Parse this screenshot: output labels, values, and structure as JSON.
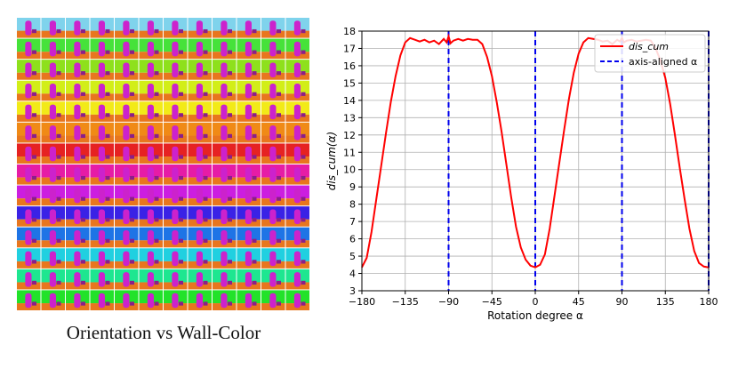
{
  "left_panel": {
    "caption": "Orientation vs Wall-Color",
    "rows": 14,
    "cols": 12,
    "row_wall_colors": [
      "#7fd3ec",
      "#46e23a",
      "#8ee01c",
      "#d2ee18",
      "#f2ea18",
      "#f08a16",
      "#e62222",
      "#e61ca6",
      "#cc1ee0",
      "#3a22e6",
      "#1e74e6",
      "#20d0e0",
      "#1ee690",
      "#22e22a"
    ],
    "object_color": "#cc22cc",
    "floor_color": "#e8761e"
  },
  "chart_data": {
    "type": "line",
    "title": "",
    "xlabel": "Rotation degree α",
    "ylabel": "dis_cum(α)",
    "xlim": [
      -180,
      180
    ],
    "ylim": [
      3,
      18
    ],
    "xticks": [
      -180,
      -135,
      -90,
      -45,
      0,
      45,
      90,
      135,
      180
    ],
    "yticks": [
      3,
      4,
      5,
      6,
      7,
      8,
      9,
      10,
      11,
      12,
      13,
      14,
      15,
      16,
      17,
      18
    ],
    "grid": true,
    "legend_position": "top-right",
    "legend": [
      "dis_cum",
      "axis-aligned α"
    ],
    "series": [
      {
        "name": "dis_cum",
        "color": "#ff0000",
        "x": [
          -180,
          -175,
          -170,
          -165,
          -160,
          -155,
          -150,
          -145,
          -140,
          -135,
          -130,
          -125,
          -120,
          -115,
          -110,
          -105,
          -100,
          -95,
          -92,
          -90,
          -88,
          -85,
          -80,
          -75,
          -70,
          -65,
          -60,
          -55,
          -50,
          -45,
          -40,
          -35,
          -30,
          -25,
          -20,
          -15,
          -10,
          -5,
          0,
          5,
          10,
          15,
          20,
          25,
          30,
          35,
          40,
          45,
          50,
          55,
          60,
          65,
          70,
          75,
          80,
          85,
          88,
          90,
          92,
          95,
          100,
          105,
          110,
          115,
          120,
          125,
          130,
          135,
          140,
          145,
          150,
          155,
          160,
          165,
          170,
          175,
          180
        ],
        "y": [
          4.35,
          4.9,
          6.4,
          8.3,
          10.2,
          12.1,
          13.9,
          15.4,
          16.6,
          17.35,
          17.6,
          17.5,
          17.4,
          17.5,
          17.35,
          17.45,
          17.25,
          17.55,
          17.35,
          17.7,
          17.3,
          17.45,
          17.55,
          17.45,
          17.55,
          17.5,
          17.5,
          17.25,
          16.5,
          15.4,
          13.9,
          12.2,
          10.3,
          8.4,
          6.7,
          5.5,
          4.8,
          4.45,
          4.35,
          4.5,
          5.1,
          6.6,
          8.5,
          10.4,
          12.3,
          14.1,
          15.6,
          16.7,
          17.35,
          17.6,
          17.55,
          17.5,
          17.4,
          17.45,
          17.25,
          17.5,
          17.4,
          17.6,
          17.35,
          17.45,
          17.5,
          17.4,
          17.45,
          17.5,
          17.45,
          17.0,
          16.3,
          15.3,
          13.8,
          12.0,
          10.1,
          8.3,
          6.6,
          5.3,
          4.6,
          4.4,
          4.35
        ]
      }
    ],
    "vlines": {
      "name": "axis-aligned α",
      "color": "#0000ee",
      "x": [
        -90,
        0,
        90,
        180
      ]
    }
  }
}
